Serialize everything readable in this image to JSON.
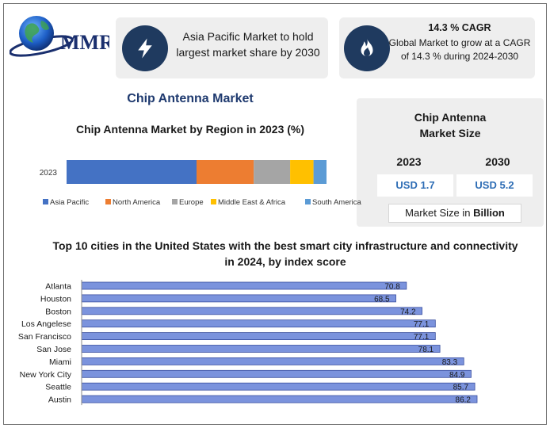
{
  "logo": {
    "text": "MMR"
  },
  "cards": {
    "asia": {
      "icon": "lightning-icon",
      "text": "Asia Pacific Market to hold largest market share by 2030"
    },
    "cagr": {
      "icon": "flame-icon",
      "title": "14.3 % CAGR",
      "text": "Global Market to grow at a CAGR of 14.3 % during 2024-2030"
    }
  },
  "section_title": "Chip Antenna Market",
  "market_size": {
    "title": "Chip Antenna Market Size",
    "year1": "2023",
    "value1": "USD 1.7",
    "year2": "2030",
    "value2": "USD 5.2",
    "unit_prefix": "Market Size in ",
    "unit_bold": "Billion"
  },
  "colors": {
    "navy": "#1f3a5f",
    "bar_blue": "#7b93dd",
    "title_blue": "#1f3a6f"
  },
  "chart_data": [
    {
      "type": "bar",
      "orientation": "horizontal",
      "stacked": true,
      "title": "Chip Antenna Market by Region in 2023 (%)",
      "categories": [
        "2023"
      ],
      "series": [
        {
          "name": "Asia Pacific",
          "values": [
            50
          ],
          "color": "#4472c4"
        },
        {
          "name": "North America",
          "values": [
            22
          ],
          "color": "#ed7d31"
        },
        {
          "name": "Europe",
          "values": [
            14
          ],
          "color": "#a5a5a5"
        },
        {
          "name": "Middle East & Africa",
          "values": [
            9
          ],
          "color": "#ffc000"
        },
        {
          "name": "South America",
          "values": [
            5
          ],
          "color": "#5b9bd5"
        }
      ],
      "legend": "bottom"
    },
    {
      "type": "bar",
      "orientation": "horizontal",
      "title": "Top 10 cities in the United States with the best smart city infrastructure and connectivity in 2024, by index score",
      "categories": [
        "Atlanta",
        "Houston",
        "Boston",
        "Los Angelese",
        "San Francisco",
        "San Jose",
        "Miami",
        "New York City",
        "Seattle",
        "Austin"
      ],
      "values": [
        70.8,
        68.5,
        74.2,
        77.1,
        77.1,
        78.1,
        83.3,
        84.9,
        85.7,
        86.2
      ],
      "labels": [
        "70.8",
        "68.5",
        "74.2",
        "77.1",
        "77.1",
        "78.1",
        "83.3",
        "84.9",
        "85.7",
        "86.2"
      ],
      "xlim": [
        0,
        86.2
      ]
    }
  ]
}
